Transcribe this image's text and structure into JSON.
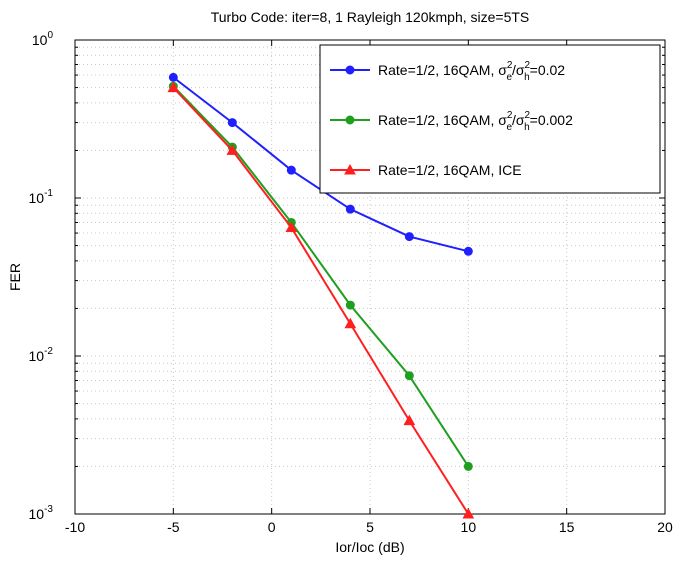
{
  "chart_data": {
    "type": "line",
    "title": "Turbo Code: iter=8, 1 Rayleigh 120kmph, size=5TS",
    "xlabel": "Ior/Ioc (dB)",
    "ylabel": "FER",
    "xlim": [
      -10,
      20
    ],
    "ylim": [
      0.001,
      1
    ],
    "yscale": "log",
    "grid": true,
    "legend_position": "top-right",
    "x_ticks": [
      "-10",
      "-5",
      "0",
      "5",
      "10",
      "15",
      "20"
    ],
    "y_ticks": [
      {
        "base": "10",
        "exp": "0"
      },
      {
        "base": "10",
        "exp": "-1"
      },
      {
        "base": "10",
        "exp": "-2"
      },
      {
        "base": "10",
        "exp": "-3"
      }
    ],
    "series": [
      {
        "name_parts": {
          "prefix": "Rate=1/2, 16QAM, ",
          "s1": "σ",
          "sub1": "e",
          "sup1": "2",
          "mid": "/",
          "s2": "σ",
          "sub2": "h",
          "sup2": "2",
          "suffix": "=0.02"
        },
        "color": "#1f1fff",
        "marker": "circle",
        "x": [
          -5,
          -2,
          1,
          4,
          7,
          10
        ],
        "y": [
          0.58,
          0.3,
          0.15,
          0.085,
          0.057,
          0.046
        ]
      },
      {
        "name_parts": {
          "prefix": "Rate=1/2, 16QAM, ",
          "s1": "σ",
          "sub1": "e",
          "sup1": "2",
          "mid": "/",
          "s2": "σ",
          "sub2": "h",
          "sup2": "2",
          "suffix": "=0.002"
        },
        "color": "#1f9f1f",
        "marker": "circle",
        "x": [
          -5,
          -2,
          1,
          4,
          7,
          10
        ],
        "y": [
          0.51,
          0.21,
          0.07,
          0.021,
          0.0075,
          0.002
        ]
      },
      {
        "name": "Rate=1/2, 16QAM, ICE",
        "color": "#ff1f1f",
        "marker": "triangle",
        "x": [
          -5,
          -2,
          1,
          4,
          7,
          10
        ],
        "y": [
          0.5,
          0.2,
          0.065,
          0.016,
          0.0039,
          0.001
        ]
      }
    ]
  }
}
